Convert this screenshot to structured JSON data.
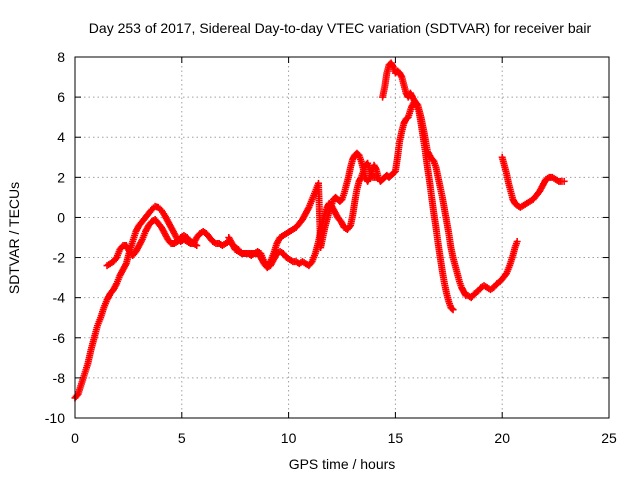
{
  "chart_data": {
    "type": "scatter",
    "title": "Day 253 of 2017, Sidereal Day-to-day VTEC variation (SDTVAR) for receiver bair",
    "xlabel": "GPS time / hours",
    "ylabel": "SDTVAR / TECUs",
    "xlim": [
      0,
      25
    ],
    "ylim": [
      -10,
      8
    ],
    "xticks": [
      "0",
      "5",
      "10",
      "15",
      "20",
      "25"
    ],
    "yticks": [
      "-10",
      "-8",
      "-6",
      "-4",
      "-2",
      "0",
      "2",
      "4",
      "6",
      "8"
    ],
    "grid": true,
    "legend": "none",
    "marker": "plus",
    "color": "#ff0000",
    "series": [
      {
        "points": [
          [
            0.0,
            -9.0
          ],
          [
            0.15,
            -8.8
          ],
          [
            0.3,
            -8.3
          ],
          [
            0.45,
            -7.8
          ],
          [
            0.6,
            -7.3
          ],
          [
            0.75,
            -6.6
          ],
          [
            0.9,
            -6.0
          ],
          [
            1.05,
            -5.4
          ],
          [
            1.2,
            -5.0
          ],
          [
            1.35,
            -4.5
          ],
          [
            1.5,
            -4.1
          ],
          [
            1.65,
            -3.8
          ],
          [
            1.8,
            -3.6
          ],
          [
            1.95,
            -3.3
          ],
          [
            2.1,
            -2.9
          ],
          [
            2.25,
            -2.6
          ],
          [
            2.4,
            -2.3
          ],
          [
            2.55,
            -1.7
          ],
          [
            2.7,
            -1.2
          ],
          [
            2.85,
            -0.7
          ],
          [
            3.0,
            -0.4
          ],
          [
            3.15,
            -0.2
          ],
          [
            3.3,
            0.0
          ],
          [
            3.45,
            0.2
          ],
          [
            3.6,
            0.4
          ],
          [
            3.75,
            0.55
          ],
          [
            3.9,
            0.5
          ],
          [
            4.05,
            0.35
          ],
          [
            4.2,
            0.1
          ],
          [
            4.35,
            -0.2
          ],
          [
            4.5,
            -0.5
          ],
          [
            4.65,
            -0.8
          ],
          [
            4.8,
            -1.1
          ],
          [
            4.95,
            -1.2
          ],
          [
            5.1,
            -1.1
          ],
          [
            5.25,
            -1.2
          ],
          [
            5.4,
            -1.3
          ],
          [
            5.55,
            -1.3
          ],
          [
            5.7,
            -1.0
          ],
          [
            5.85,
            -0.8
          ],
          [
            6.0,
            -0.7
          ],
          [
            6.15,
            -0.8
          ],
          [
            6.3,
            -1.0
          ],
          [
            6.45,
            -1.2
          ],
          [
            6.6,
            -1.3
          ],
          [
            6.75,
            -1.3
          ],
          [
            6.9,
            -1.4
          ],
          [
            7.05,
            -1.3
          ],
          [
            7.2,
            -1.2
          ],
          [
            7.35,
            -1.3
          ],
          [
            7.5,
            -1.6
          ],
          [
            7.65,
            -1.7
          ],
          [
            7.8,
            -1.8
          ],
          [
            7.95,
            -1.8
          ],
          [
            8.1,
            -1.8
          ],
          [
            8.25,
            -1.8
          ],
          [
            8.4,
            -1.8
          ],
          [
            8.55,
            -1.7
          ],
          [
            8.7,
            -1.8
          ],
          [
            8.85,
            -2.2
          ],
          [
            9.0,
            -2.4
          ],
          [
            9.15,
            -2.2
          ],
          [
            9.3,
            -1.8
          ],
          [
            9.45,
            -1.3
          ],
          [
            9.6,
            -1.0
          ],
          [
            9.75,
            -0.9
          ],
          [
            9.9,
            -0.8
          ],
          [
            10.05,
            -0.7
          ],
          [
            10.2,
            -0.6
          ],
          [
            10.35,
            -0.5
          ],
          [
            10.5,
            -0.3
          ],
          [
            10.65,
            -0.1
          ],
          [
            10.8,
            0.2
          ],
          [
            10.95,
            0.5
          ],
          [
            11.1,
            0.9
          ],
          [
            11.25,
            1.3
          ],
          [
            11.4,
            1.7
          ],
          [
            11.5,
            -1.5
          ],
          [
            11.6,
            -1.0
          ],
          [
            11.7,
            -0.5
          ],
          [
            11.8,
            -0.1
          ],
          [
            11.9,
            0.3
          ],
          [
            12.0,
            0.6
          ],
          [
            12.1,
            0.9
          ],
          [
            12.2,
            1.0
          ],
          [
            12.3,
            0.9
          ],
          [
            12.4,
            0.8
          ],
          [
            12.5,
            0.9
          ],
          [
            12.6,
            1.2
          ],
          [
            12.7,
            1.6
          ],
          [
            12.8,
            2.0
          ],
          [
            12.9,
            2.5
          ],
          [
            13.0,
            2.9
          ],
          [
            13.1,
            3.1
          ],
          [
            13.2,
            3.2
          ],
          [
            13.3,
            3.1
          ],
          [
            13.4,
            2.8
          ],
          [
            13.5,
            2.4
          ],
          [
            13.6,
            2.0
          ],
          [
            13.7,
            1.8
          ],
          [
            13.8,
            2.0
          ],
          [
            13.9,
            2.3
          ],
          [
            14.0,
            2.6
          ],
          [
            14.1,
            2.4
          ],
          [
            14.2,
            2.0
          ],
          [
            14.3,
            1.8
          ],
          [
            14.4,
            1.9
          ],
          [
            14.5,
            2.0
          ],
          [
            14.6,
            2.1
          ],
          [
            14.7,
            2.0
          ],
          [
            14.8,
            2.1
          ],
          [
            14.9,
            2.2
          ],
          [
            15.0,
            2.3
          ],
          [
            15.1,
            3.0
          ],
          [
            15.2,
            3.8
          ],
          [
            15.3,
            4.3
          ],
          [
            15.4,
            4.7
          ],
          [
            15.5,
            4.9
          ],
          [
            15.6,
            5.0
          ],
          [
            15.75,
            5.5
          ],
          [
            15.9,
            5.8
          ],
          [
            16.05,
            5.6
          ],
          [
            16.2,
            5.0
          ],
          [
            16.35,
            4.2
          ],
          [
            16.5,
            3.3
          ],
          [
            16.65,
            3.0
          ],
          [
            16.8,
            2.8
          ],
          [
            16.9,
            2.5
          ],
          [
            17.0,
            2.0
          ],
          [
            17.1,
            1.5
          ],
          [
            17.2,
            1.0
          ],
          [
            17.3,
            0.4
          ],
          [
            17.4,
            -0.2
          ],
          [
            17.5,
            -0.8
          ],
          [
            17.6,
            -1.5
          ],
          [
            17.7,
            -2.0
          ],
          [
            17.8,
            -2.4
          ],
          [
            17.9,
            -2.8
          ],
          [
            18.0,
            -3.2
          ],
          [
            18.1,
            -3.5
          ],
          [
            18.2,
            -3.7
          ],
          [
            18.3,
            -3.9
          ],
          [
            18.4,
            -3.9
          ],
          [
            18.55,
            -4.0
          ],
          [
            18.7,
            -3.8
          ],
          [
            18.85,
            -3.7
          ],
          [
            19.0,
            -3.5
          ],
          [
            19.15,
            -3.4
          ],
          [
            19.3,
            -3.5
          ],
          [
            19.45,
            -3.6
          ],
          [
            19.6,
            -3.5
          ],
          [
            19.75,
            -3.3
          ],
          [
            19.9,
            -3.2
          ],
          [
            20.05,
            -3.0
          ],
          [
            20.2,
            -2.8
          ],
          [
            20.35,
            -2.4
          ],
          [
            20.5,
            -1.9
          ],
          [
            20.6,
            -1.5
          ],
          [
            20.7,
            -1.2
          ]
        ]
      },
      {
        "points": [
          [
            1.5,
            -2.4
          ],
          [
            1.65,
            -2.3
          ],
          [
            1.8,
            -2.2
          ],
          [
            1.95,
            -2.0
          ],
          [
            2.1,
            -1.6
          ],
          [
            2.25,
            -1.4
          ],
          [
            2.4,
            -1.4
          ],
          [
            2.55,
            -1.7
          ],
          [
            2.7,
            -1.9
          ],
          [
            2.85,
            -1.7
          ],
          [
            3.0,
            -1.4
          ],
          [
            3.15,
            -1.1
          ],
          [
            3.3,
            -0.7
          ],
          [
            3.45,
            -0.4
          ],
          [
            3.6,
            -0.2
          ],
          [
            3.75,
            -0.1
          ],
          [
            3.9,
            -0.3
          ],
          [
            4.05,
            -0.5
          ],
          [
            4.2,
            -0.8
          ],
          [
            4.35,
            -1.1
          ],
          [
            4.5,
            -1.3
          ],
          [
            4.65,
            -1.3
          ],
          [
            4.8,
            -1.2
          ],
          [
            4.95,
            -1.0
          ],
          [
            5.1,
            -0.9
          ],
          [
            5.25,
            -1.0
          ],
          [
            5.4,
            -1.2
          ],
          [
            5.55,
            -1.3
          ],
          [
            5.7,
            -1.4
          ]
        ]
      },
      {
        "points": [
          [
            7.2,
            -1.0
          ],
          [
            7.35,
            -1.3
          ],
          [
            7.5,
            -1.5
          ],
          [
            7.65,
            -1.6
          ],
          [
            7.8,
            -1.8
          ],
          [
            7.95,
            -1.8
          ],
          [
            8.1,
            -1.8
          ],
          [
            8.25,
            -1.9
          ],
          [
            8.4,
            -1.8
          ],
          [
            8.55,
            -1.8
          ],
          [
            8.7,
            -2.0
          ],
          [
            8.85,
            -2.3
          ],
          [
            9.0,
            -2.5
          ],
          [
            9.15,
            -2.4
          ],
          [
            9.3,
            -2.1
          ],
          [
            9.45,
            -1.8
          ],
          [
            9.6,
            -1.7
          ],
          [
            9.75,
            -1.8
          ],
          [
            9.9,
            -2.0
          ],
          [
            10.05,
            -2.1
          ],
          [
            10.2,
            -2.2
          ],
          [
            10.35,
            -2.2
          ],
          [
            10.5,
            -2.3
          ],
          [
            10.65,
            -2.2
          ],
          [
            10.8,
            -2.3
          ],
          [
            10.95,
            -2.4
          ],
          [
            11.1,
            -2.2
          ],
          [
            11.25,
            -1.8
          ],
          [
            11.4,
            -1.2
          ],
          [
            11.5,
            -0.7
          ],
          [
            11.6,
            -0.2
          ],
          [
            11.7,
            0.2
          ],
          [
            11.8,
            0.5
          ],
          [
            11.9,
            0.7
          ],
          [
            12.0,
            0.6
          ],
          [
            12.15,
            0.3
          ],
          [
            12.3,
            0.0
          ],
          [
            12.45,
            -0.2
          ],
          [
            12.6,
            -0.5
          ],
          [
            12.75,
            -0.6
          ],
          [
            12.9,
            -0.4
          ],
          [
            13.0,
            0.1
          ],
          [
            13.1,
            0.8
          ],
          [
            13.2,
            1.4
          ],
          [
            13.3,
            1.8
          ],
          [
            13.4,
            2.0
          ],
          [
            13.5,
            2.3
          ],
          [
            13.6,
            2.6
          ],
          [
            13.7,
            2.7
          ],
          [
            13.8,
            2.4
          ],
          [
            13.95,
            2.0
          ],
          [
            14.1,
            2.0
          ]
        ]
      },
      {
        "points": [
          [
            14.4,
            6.0
          ],
          [
            14.5,
            6.5
          ],
          [
            14.6,
            7.2
          ],
          [
            14.7,
            7.6
          ],
          [
            14.8,
            7.7
          ],
          [
            14.9,
            7.5
          ],
          [
            15.0,
            7.2
          ],
          [
            15.1,
            7.3
          ],
          [
            15.2,
            7.2
          ],
          [
            15.3,
            7.0
          ],
          [
            15.4,
            6.6
          ],
          [
            15.5,
            6.2
          ],
          [
            15.6,
            6.0
          ],
          [
            15.7,
            6.2
          ],
          [
            15.8,
            6.0
          ],
          [
            15.95,
            5.7
          ],
          [
            16.1,
            5.3
          ],
          [
            16.2,
            4.7
          ],
          [
            16.3,
            4.0
          ],
          [
            16.4,
            3.3
          ],
          [
            16.5,
            2.5
          ],
          [
            16.6,
            1.8
          ],
          [
            16.7,
            1.0
          ],
          [
            16.8,
            0.2
          ],
          [
            16.9,
            -0.5
          ],
          [
            17.0,
            -1.3
          ],
          [
            17.1,
            -2.0
          ],
          [
            17.2,
            -2.7
          ],
          [
            17.3,
            -3.3
          ],
          [
            17.4,
            -3.8
          ],
          [
            17.5,
            -4.2
          ],
          [
            17.6,
            -4.5
          ],
          [
            17.7,
            -4.6
          ]
        ]
      },
      {
        "points": [
          [
            20.0,
            3.0
          ],
          [
            20.1,
            2.6
          ],
          [
            20.2,
            2.2
          ],
          [
            20.3,
            1.7
          ],
          [
            20.4,
            1.3
          ],
          [
            20.5,
            0.9
          ],
          [
            20.6,
            0.7
          ],
          [
            20.7,
            0.6
          ],
          [
            20.85,
            0.5
          ],
          [
            21.0,
            0.6
          ],
          [
            21.15,
            0.7
          ],
          [
            21.3,
            0.8
          ],
          [
            21.45,
            0.9
          ],
          [
            21.6,
            1.1
          ],
          [
            21.75,
            1.3
          ],
          [
            21.9,
            1.6
          ],
          [
            22.05,
            1.9
          ],
          [
            22.2,
            2.0
          ],
          [
            22.35,
            2.0
          ],
          [
            22.5,
            1.9
          ],
          [
            22.65,
            1.8
          ],
          [
            22.8,
            1.8
          ],
          [
            22.9,
            1.8
          ]
        ]
      }
    ]
  }
}
